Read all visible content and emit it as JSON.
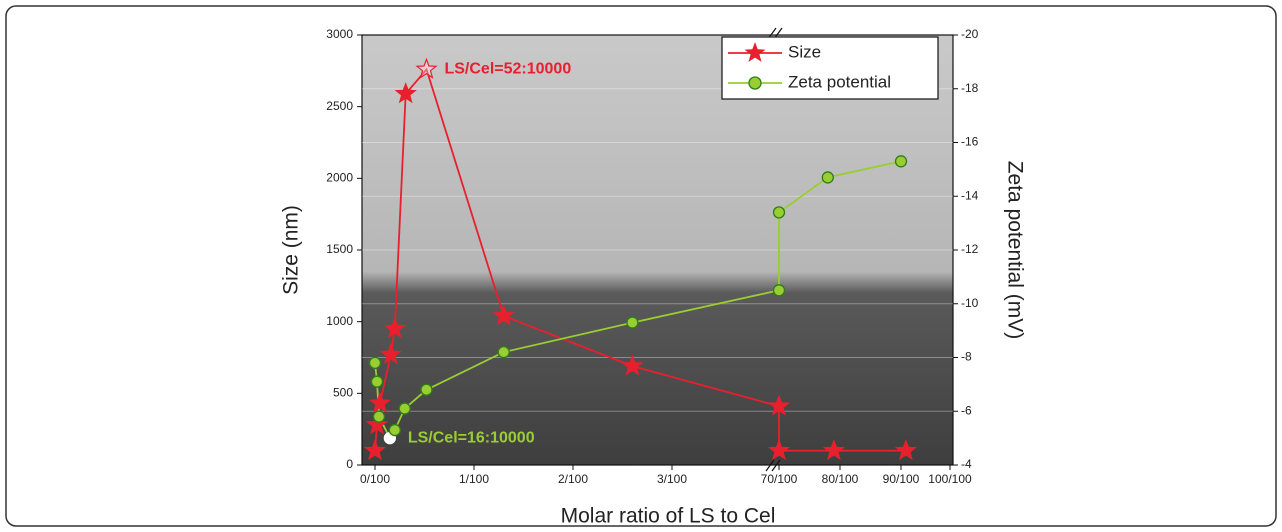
{
  "chart_data": {
    "type": "line",
    "x_label": "Molar ratio of LS to Cel",
    "y_label": "Size (nm)",
    "y2_label": "Zeta potential (mV)",
    "xticks": [
      {
        "value": 0,
        "label": "0/100"
      },
      {
        "value": 1,
        "label": "1/100"
      },
      {
        "value": 2,
        "label": "2/100"
      },
      {
        "value": 3,
        "label": "3/100"
      },
      {
        "value": 70,
        "label": "70/100"
      },
      {
        "value": 80,
        "label": "80/100"
      },
      {
        "value": 90,
        "label": "90/100"
      },
      {
        "value": 100,
        "label": "100/100"
      }
    ],
    "ylim": [
      0,
      3000
    ],
    "yticks": [
      0,
      500,
      1000,
      1500,
      2000,
      2500,
      3000
    ],
    "y2lim": [
      -4,
      -20
    ],
    "y2ticks": [
      -4,
      -6,
      -8,
      -10,
      -12,
      -14,
      -16,
      -18,
      -20
    ],
    "legend": "upper right",
    "series": [
      {
        "name": "Size",
        "color": "#e8202e",
        "marker": "star",
        "x": [
          0,
          0.02,
          0.05,
          0.16,
          0.2,
          0.31,
          0.52,
          1.3,
          2.6,
          70,
          70,
          79,
          91
        ],
        "values": [
          100,
          280,
          430,
          770,
          950,
          2590,
          2760,
          1040,
          690,
          410,
          100,
          100,
          100
        ]
      },
      {
        "name": "Zeta potential",
        "color": "#9acd32",
        "marker": "circle",
        "axis": "y2",
        "x": [
          0,
          0.02,
          0.04,
          0.15,
          0.2,
          0.3,
          0.52,
          1.3,
          2.6,
          70,
          70,
          78,
          90
        ],
        "values": [
          -7.8,
          -7.1,
          -5.8,
          -5.0,
          -5.3,
          -6.1,
          -6.8,
          -8.2,
          -9.3,
          -10.5,
          -13.4,
          -14.7,
          -15.3
        ]
      }
    ],
    "annotations": [
      {
        "text": "LS/Cel=52:10000",
        "series": 0,
        "point": 6
      },
      {
        "text": "LS/Cel=16:10000",
        "series": 1,
        "point": 3
      }
    ]
  }
}
